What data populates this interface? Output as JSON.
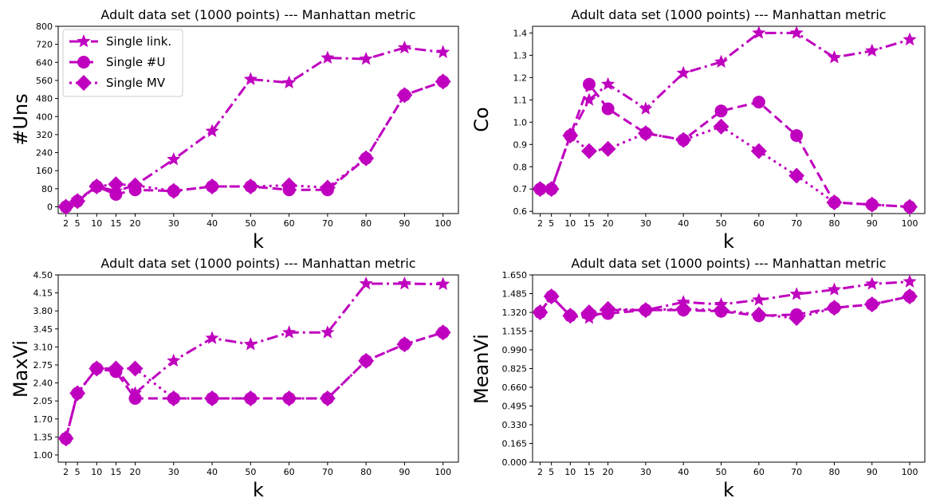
{
  "colors": {
    "series": "#bf00bf",
    "axis": "#000000",
    "legend_border": "#cccccc"
  },
  "chart_data": [
    {
      "type": "line",
      "title": "Adult data set (1000 points) --- Manhattan metric",
      "xlabel": "k",
      "ylabel": "#Uns",
      "x": [
        2,
        5,
        10,
        15,
        20,
        30,
        40,
        50,
        60,
        70,
        80,
        90,
        100
      ],
      "xticks": [
        "2",
        "5",
        "10",
        "15",
        "20",
        "30",
        "40",
        "50",
        "60",
        "70",
        "80",
        "90",
        "100"
      ],
      "ylim": [
        -30,
        800
      ],
      "yticks": [
        "0",
        "80",
        "160",
        "240",
        "320",
        "400",
        "480",
        "560",
        "640",
        "720",
        "800"
      ],
      "legend": {
        "position": "upper-left"
      },
      "series": [
        {
          "name": "Single link.",
          "marker": "star",
          "linestyle": "dashdot",
          "values": [
            0,
            30,
            90,
            70,
            95,
            210,
            335,
            565,
            550,
            660,
            655,
            705,
            685
          ]
        },
        {
          "name": "Single #U",
          "marker": "circle",
          "linestyle": "dashed",
          "values": [
            0,
            25,
            90,
            55,
            75,
            70,
            90,
            90,
            75,
            75,
            215,
            495,
            555
          ]
        },
        {
          "name": "Single MV",
          "marker": "diamond",
          "linestyle": "dotted",
          "values": [
            0,
            25,
            90,
            100,
            95,
            70,
            90,
            90,
            95,
            85,
            215,
            495,
            555
          ]
        }
      ]
    },
    {
      "type": "line",
      "title": "Adult data set (1000 points) --- Manhattan metric",
      "xlabel": "k",
      "ylabel": "Co",
      "x": [
        2,
        5,
        10,
        15,
        20,
        30,
        40,
        50,
        60,
        70,
        80,
        90,
        100
      ],
      "xticks": [
        "2",
        "5",
        "10",
        "15",
        "20",
        "30",
        "40",
        "50",
        "60",
        "70",
        "80",
        "90",
        "100"
      ],
      "ylim": [
        0.59,
        1.43
      ],
      "yticks": [
        "0.6",
        "0.7",
        "0.8",
        "0.9",
        "1.0",
        "1.1",
        "1.2",
        "1.3",
        "1.4"
      ],
      "series": [
        {
          "name": "Single link.",
          "marker": "star",
          "linestyle": "dashdot",
          "values": [
            0.7,
            0.7,
            0.94,
            1.1,
            1.17,
            1.06,
            1.22,
            1.27,
            1.4,
            1.4,
            1.29,
            1.32,
            1.37
          ]
        },
        {
          "name": "Single #U",
          "marker": "circle",
          "linestyle": "dashed",
          "values": [
            0.7,
            0.7,
            0.94,
            1.17,
            1.06,
            0.95,
            0.92,
            1.05,
            1.09,
            0.94,
            0.64,
            0.63,
            0.62
          ]
        },
        {
          "name": "Single MV",
          "marker": "diamond",
          "linestyle": "dotted",
          "values": [
            0.7,
            0.7,
            0.94,
            0.87,
            0.88,
            0.95,
            0.92,
            0.98,
            0.87,
            0.76,
            0.64,
            0.63,
            0.62
          ]
        }
      ]
    },
    {
      "type": "line",
      "title": "Adult data set (1000 points) --- Manhattan metric",
      "xlabel": "k",
      "ylabel": "MaxVi",
      "x": [
        2,
        5,
        10,
        15,
        20,
        30,
        40,
        50,
        60,
        70,
        80,
        90,
        100
      ],
      "xticks": [
        "2",
        "5",
        "10",
        "15",
        "20",
        "30",
        "40",
        "50",
        "60",
        "70",
        "80",
        "90",
        "100"
      ],
      "ylim": [
        0.86,
        4.5
      ],
      "yticks": [
        "1.00",
        "1.35",
        "1.70",
        "2.05",
        "2.40",
        "2.75",
        "3.10",
        "3.45",
        "3.80",
        "4.15",
        "4.50"
      ],
      "series": [
        {
          "name": "Single link.",
          "marker": "star",
          "linestyle": "dashdot",
          "values": [
            1.32,
            2.2,
            2.68,
            2.68,
            2.2,
            2.83,
            3.27,
            3.15,
            3.38,
            3.38,
            4.33,
            4.33,
            4.32
          ]
        },
        {
          "name": "Single #U",
          "marker": "circle",
          "linestyle": "dashed",
          "values": [
            1.32,
            2.2,
            2.68,
            2.62,
            2.1,
            2.1,
            2.1,
            2.1,
            2.1,
            2.1,
            2.83,
            3.15,
            3.38
          ]
        },
        {
          "name": "Single MV",
          "marker": "diamond",
          "linestyle": "dotted",
          "values": [
            1.32,
            2.2,
            2.68,
            2.68,
            2.68,
            2.1,
            2.1,
            2.1,
            2.1,
            2.1,
            2.83,
            3.15,
            3.38
          ]
        }
      ]
    },
    {
      "type": "line",
      "title": "Adult data set (1000 points) --- Manhattan metric",
      "xlabel": "k",
      "ylabel": "MeanVi",
      "x": [
        2,
        5,
        10,
        15,
        20,
        30,
        40,
        50,
        60,
        70,
        80,
        90,
        100
      ],
      "xticks": [
        "2",
        "5",
        "10",
        "15",
        "20",
        "30",
        "40",
        "50",
        "60",
        "70",
        "80",
        "90",
        "100"
      ],
      "ylim": [
        0.0,
        1.65
      ],
      "yticks": [
        "0.000",
        "0.165",
        "0.330",
        "0.495",
        "0.660",
        "0.825",
        "0.990",
        "1.155",
        "1.320",
        "1.485",
        "1.650"
      ],
      "series": [
        {
          "name": "Single link.",
          "marker": "star",
          "linestyle": "dashdot",
          "values": [
            1.32,
            1.46,
            1.29,
            1.27,
            1.34,
            1.34,
            1.41,
            1.39,
            1.43,
            1.48,
            1.52,
            1.57,
            1.59
          ]
        },
        {
          "name": "Single #U",
          "marker": "circle",
          "linestyle": "dashed",
          "values": [
            1.32,
            1.46,
            1.29,
            1.3,
            1.31,
            1.34,
            1.34,
            1.33,
            1.29,
            1.3,
            1.36,
            1.39,
            1.46
          ]
        },
        {
          "name": "Single MV",
          "marker": "diamond",
          "linestyle": "dotted",
          "values": [
            1.32,
            1.46,
            1.29,
            1.32,
            1.35,
            1.34,
            1.35,
            1.34,
            1.3,
            1.27,
            1.36,
            1.39,
            1.46
          ]
        }
      ]
    }
  ]
}
